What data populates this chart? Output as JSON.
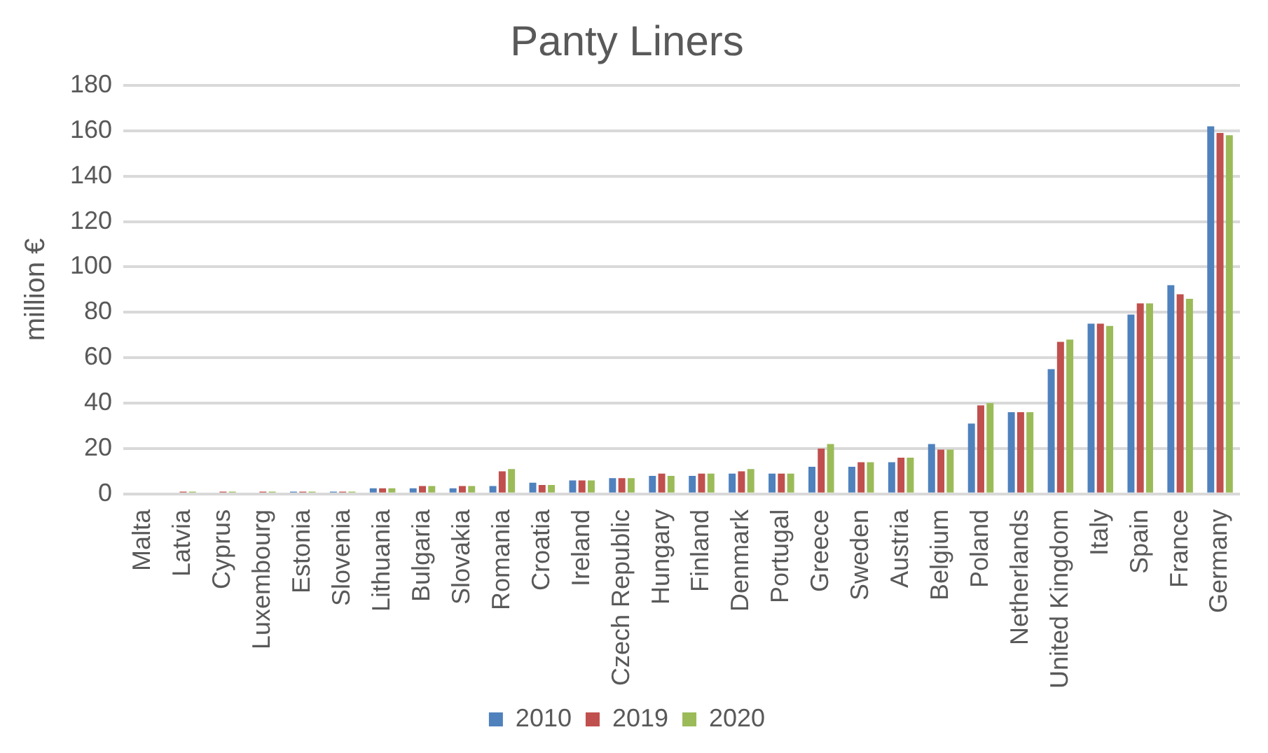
{
  "chart_data": {
    "type": "bar",
    "title": "Panty Liners",
    "ylabel": "million €",
    "categories": [
      "Malta",
      "Latvia",
      "Cyprus",
      "Luxembourg",
      "Estonia",
      "Slovenia",
      "Lithuania",
      "Bulgaria",
      "Slovakia",
      "Romania",
      "Croatia",
      "Ireland",
      "Czech Republic",
      "Hungary",
      "Finland",
      "Denmark",
      "Portugal",
      "Greece",
      "Sweden",
      "Austria",
      "Belgium",
      "Poland",
      "Netherlands",
      "United Kingdom",
      "Italy",
      "Spain",
      "France",
      "Germany"
    ],
    "series": [
      {
        "name": "2010",
        "color": "#4f81bd",
        "values": [
          0,
          0,
          0,
          0,
          1,
          1,
          2.5,
          2.5,
          2.5,
          3.5,
          5,
          6,
          7,
          8,
          8,
          9,
          9,
          12,
          12,
          14,
          22,
          31,
          36,
          55,
          75,
          79,
          92,
          162
        ]
      },
      {
        "name": "2019",
        "color": "#c0504d",
        "values": [
          0,
          1,
          1,
          1,
          1,
          1,
          2.5,
          3.5,
          3.5,
          10,
          4,
          6,
          7,
          9,
          9,
          10,
          9,
          20,
          14,
          16,
          19.5,
          39,
          36,
          67,
          75,
          84,
          88,
          159
        ]
      },
      {
        "name": "2020",
        "color": "#9bbb59",
        "values": [
          0,
          1,
          1,
          1,
          1,
          1,
          2.5,
          3.5,
          3.5,
          11,
          4,
          6,
          7,
          8,
          9,
          11,
          9,
          22,
          14,
          16,
          19.5,
          40,
          36,
          68,
          74,
          84,
          86,
          158
        ]
      }
    ],
    "ylim": [
      0,
      180
    ],
    "yticks": [
      0,
      20,
      40,
      60,
      80,
      100,
      120,
      140,
      160,
      180
    ],
    "grid": "y",
    "legend": "bottom"
  }
}
